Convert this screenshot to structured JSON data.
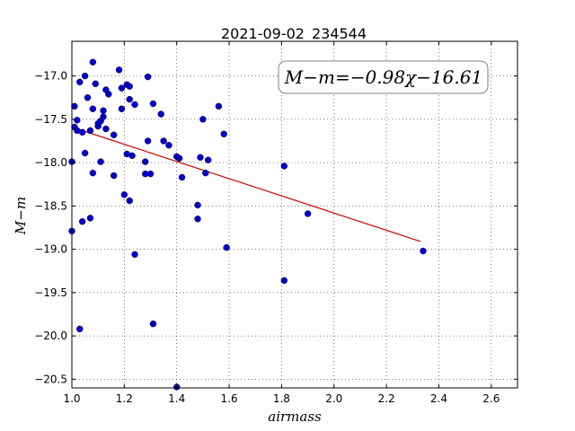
{
  "chart_data": {
    "type": "scatter",
    "title": "2021-09-02_234544",
    "xlabel": "airmass",
    "ylabel": "M−m",
    "xlim": [
      1.0,
      2.7
    ],
    "ylim": [
      -20.6,
      -16.6
    ],
    "y_inverted": true,
    "grid": true,
    "xticks": [
      1.0,
      1.2,
      1.4,
      1.6,
      1.8,
      2.0,
      2.2,
      2.4,
      2.6
    ],
    "xtick_labels": [
      "1.0",
      "1.2",
      "1.4",
      "1.6",
      "1.8",
      "2.0",
      "2.2",
      "2.4",
      "2.6"
    ],
    "yticks": [
      -17.0,
      -17.5,
      -18.0,
      -18.5,
      -19.0,
      -19.5,
      -20.0,
      -20.5
    ],
    "ytick_labels": [
      "−17.0",
      "−17.5",
      "−18.0",
      "−18.5",
      "−19.0",
      "−19.5",
      "−20.0",
      "−20.5"
    ],
    "annotation": "M−m=−0.98χ−16.61",
    "points_color": "#0000cc",
    "fit_color": "#cc0000",
    "series": [
      {
        "x": [
          1.0,
          1.0,
          1.01,
          1.01,
          1.02,
          1.02,
          1.03,
          1.03,
          1.04,
          1.04,
          1.05,
          1.05,
          1.06,
          1.07,
          1.07,
          1.08,
          1.08,
          1.08,
          1.09,
          1.1,
          1.1,
          1.11,
          1.11,
          1.12,
          1.12,
          1.13,
          1.13,
          1.14,
          1.16,
          1.16,
          1.18,
          1.19,
          1.19,
          1.2,
          1.21,
          1.21,
          1.22,
          1.22,
          1.22,
          1.23,
          1.24,
          1.24,
          1.28,
          1.28,
          1.29,
          1.29,
          1.3,
          1.31,
          1.31,
          1.34,
          1.35,
          1.37,
          1.4,
          1.4,
          1.41,
          1.42,
          1.48,
          1.48,
          1.49,
          1.5,
          1.51,
          1.52,
          1.56,
          1.58,
          1.59,
          1.81,
          1.81,
          1.9,
          2.34
        ],
        "y": [
          -17.99,
          -18.79,
          -17.35,
          -17.59,
          -17.51,
          -17.63,
          -17.07,
          -19.92,
          -18.68,
          -17.65,
          -17.0,
          -17.89,
          -17.25,
          -17.63,
          -18.64,
          -16.84,
          -17.38,
          -18.12,
          -17.09,
          -17.55,
          -17.58,
          -17.52,
          -17.99,
          -17.47,
          -17.4,
          -17.61,
          -17.16,
          -17.21,
          -17.68,
          -18.15,
          -16.93,
          -17.38,
          -17.14,
          -18.37,
          -17.9,
          -17.1,
          -17.12,
          -18.44,
          -17.27,
          -17.92,
          -17.33,
          -19.06,
          -17.99,
          -18.13,
          -17.75,
          -17.01,
          -18.13,
          -17.32,
          -19.86,
          -17.44,
          -17.75,
          -17.8,
          -20.59,
          -17.93,
          -17.95,
          -18.17,
          -18.65,
          -18.49,
          -17.94,
          -17.5,
          -18.12,
          -17.97,
          -17.35,
          -17.67,
          -18.98,
          -18.04,
          -19.36,
          -18.59,
          -19.02
        ]
      },
      {
        "x": [
          1.03,
          2.33
        ],
        "y": [
          -17.62,
          -18.91
        ]
      }
    ]
  }
}
